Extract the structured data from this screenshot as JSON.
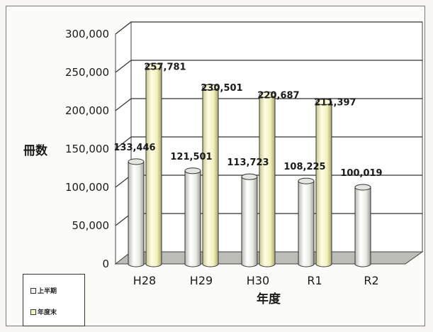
{
  "chart_data": {
    "type": "bar",
    "categories": [
      "H28",
      "H29",
      "H30",
      "R1",
      "R2"
    ],
    "series": [
      {
        "name": "上半期",
        "values": [
          133446,
          121501,
          113723,
          108225,
          100019
        ],
        "labels": [
          "133,446",
          "121,501",
          "113,723",
          "108,225",
          "100,019"
        ],
        "color": "#f2f2ee"
      },
      {
        "name": "年度末",
        "values": [
          257781,
          230501,
          220687,
          211397,
          null
        ],
        "labels": [
          "257,781",
          "230,501",
          "220,687",
          "211,397",
          ""
        ],
        "color": "#f8f6c8"
      }
    ],
    "yticks": [
      "0",
      "50,000",
      "100,000",
      "150,000",
      "200,000",
      "250,000",
      "300,000"
    ],
    "ylim": [
      0,
      300000
    ],
    "xlabel": "年度",
    "ylabel": "冊数",
    "grid": true,
    "legend_position": "bottom-left",
    "style": "3d-cylinder"
  },
  "legend": {
    "items": [
      "上半期",
      "年度末"
    ]
  }
}
